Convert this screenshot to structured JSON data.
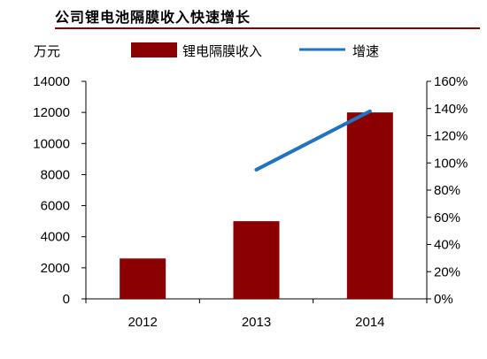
{
  "header": {
    "title": "公司锂电池隔膜收入快速增长"
  },
  "chart_data": {
    "type": "bar",
    "title": "公司锂电池隔膜收入快速增长",
    "categories": [
      "2012",
      "2013",
      "2014"
    ],
    "series": [
      {
        "name": "锂电隔膜收入",
        "kind": "bar",
        "axis": "left",
        "values": [
          2600,
          5000,
          12000
        ]
      },
      {
        "name": "增速",
        "kind": "line",
        "axis": "right",
        "values": [
          null,
          95,
          138
        ]
      }
    ],
    "ylabel": "万元",
    "ylim": [
      0,
      14000
    ],
    "y_ticks": [
      "0",
      "2000",
      "4000",
      "6000",
      "8000",
      "10000",
      "12000",
      "14000"
    ],
    "y2lim": [
      0,
      160
    ],
    "y2_ticks": [
      "0%",
      "20%",
      "40%",
      "60%",
      "80%",
      "100%",
      "120%",
      "140%",
      "160%"
    ],
    "legend_position": "top",
    "grid": false,
    "colors": {
      "bar": "#8b0000",
      "line": "#1f73c2",
      "title_rule": "#8b0000",
      "axis": "#000000"
    }
  }
}
